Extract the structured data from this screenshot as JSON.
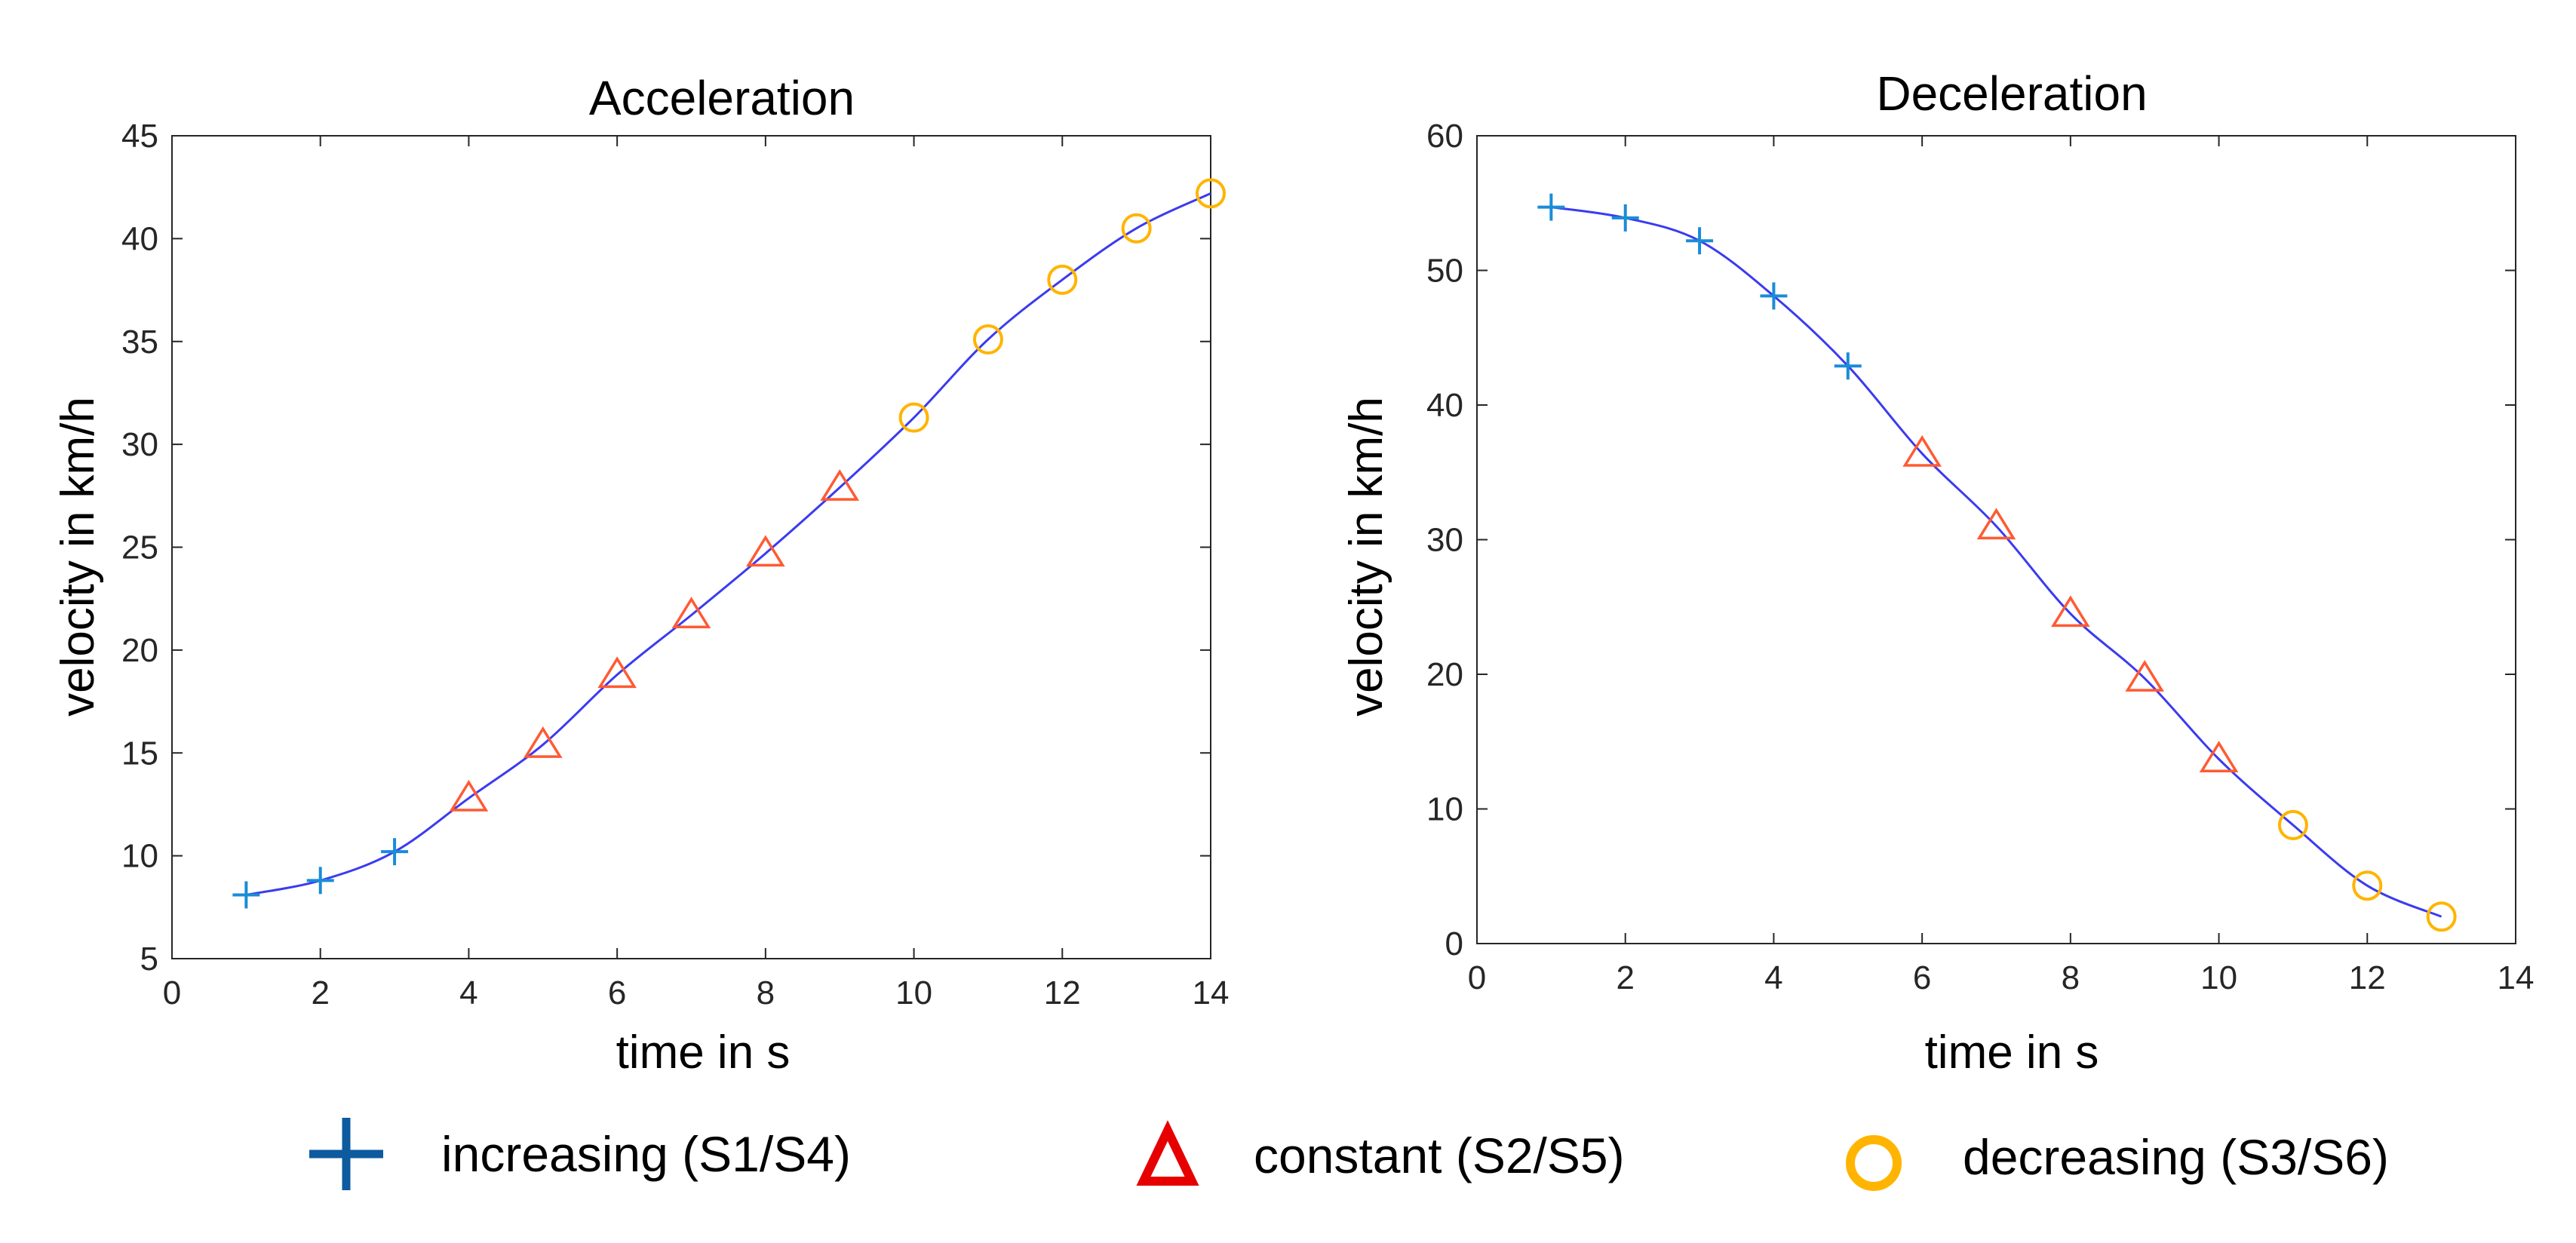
{
  "chart_data": [
    {
      "type": "line",
      "title": "Acceleration",
      "xlabel": "time in s",
      "ylabel": "velocity in km/h",
      "xlim": [
        0,
        14
      ],
      "ylim": [
        5,
        45
      ],
      "xticks": [
        0,
        2,
        4,
        6,
        8,
        10,
        12,
        14
      ],
      "yticks": [
        5,
        10,
        15,
        20,
        25,
        30,
        35,
        40,
        45
      ],
      "grid": false,
      "series": [
        {
          "name": "increasing (S1/S4)",
          "marker": "plus",
          "x": [
            1,
            2,
            3
          ],
          "y": [
            8.1,
            8.8,
            10.2
          ]
        },
        {
          "name": "constant (S2/S5)",
          "marker": "triangle",
          "x": [
            4,
            5,
            6,
            7,
            8,
            9
          ],
          "y": [
            12.8,
            15.4,
            18.8,
            21.7,
            24.7,
            27.9
          ]
        },
        {
          "name": "decreasing (S3/S6)",
          "marker": "circle",
          "x": [
            10,
            11,
            12,
            13,
            14
          ],
          "y": [
            31.3,
            35.1,
            38.0,
            40.5,
            42.2
          ]
        }
      ]
    },
    {
      "type": "line",
      "title": "Deceleration",
      "xlabel": "time in s",
      "ylabel": "velocity in km/h",
      "xlim": [
        0,
        14
      ],
      "ylim": [
        0,
        60
      ],
      "xticks": [
        0,
        2,
        4,
        6,
        8,
        10,
        12,
        14
      ],
      "yticks": [
        0,
        10,
        20,
        30,
        40,
        50,
        60
      ],
      "grid": false,
      "series": [
        {
          "name": "increasing (S1/S4)",
          "marker": "plus",
          "x": [
            1,
            2,
            3,
            4,
            5
          ],
          "y": [
            54.7,
            53.9,
            52.2,
            48.1,
            42.9
          ]
        },
        {
          "name": "constant (S2/S5)",
          "marker": "triangle",
          "x": [
            6,
            7,
            8,
            9,
            10
          ],
          "y": [
            36.4,
            31.0,
            24.5,
            19.7,
            13.7
          ]
        },
        {
          "name": "decreasing (S3/S6)",
          "marker": "circle",
          "x": [
            11,
            12,
            13
          ],
          "y": [
            8.8,
            4.3,
            2.0
          ]
        }
      ]
    }
  ],
  "legend": {
    "position": "bottom",
    "items": [
      {
        "label": "increasing (S1/S4)",
        "marker": "plus",
        "color": "#0d5a9e"
      },
      {
        "label": "constant (S2/S5)",
        "marker": "triangle",
        "color": "#e60000"
      },
      {
        "label": "decreasing (S3/S6)",
        "marker": "circle",
        "color": "#ffb400"
      }
    ]
  },
  "colors": {
    "line": "#3b3bf0",
    "plus_marker": "#1a8cd8",
    "triangle_marker": "#ff5a33",
    "circle_marker": "#ffb400",
    "axis": "#262626"
  }
}
